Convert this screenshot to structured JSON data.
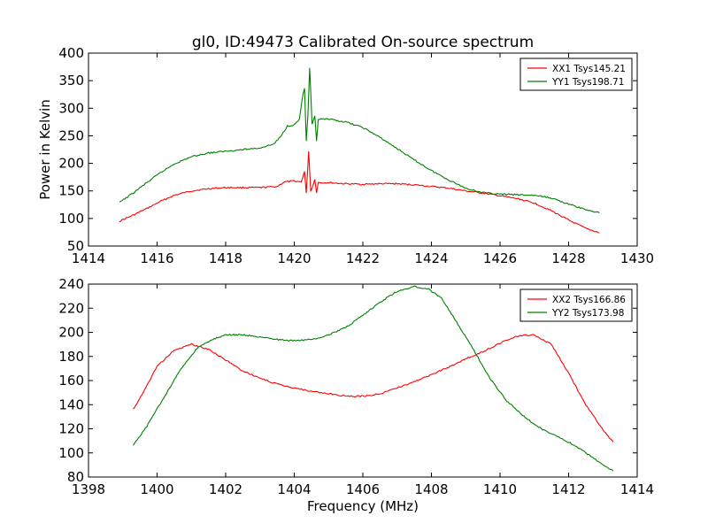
{
  "page_title": "gl0, ID:49473 Calibrated On-source spectrum",
  "colors": {
    "xx": "#ff0000",
    "yy": "#008000",
    "axis": "#000000",
    "background": "#ffffff"
  },
  "chart_data": [
    {
      "type": "line",
      "title": "gl0, ID:49473 Calibrated On-source spectrum",
      "xlabel": "",
      "ylabel": "Power in Kelvin",
      "xlim": [
        1414,
        1430
      ],
      "ylim": [
        50,
        400
      ],
      "xticks": [
        1414,
        1416,
        1418,
        1420,
        1422,
        1424,
        1426,
        1428,
        1430
      ],
      "yticks": [
        50,
        100,
        150,
        200,
        250,
        300,
        350,
        400
      ],
      "grid": false,
      "legend_position": "top-right",
      "series": [
        {
          "name": "XX1 Tsys145.21",
          "color": "#ff0000",
          "points": [
            [
              1414.9,
              95
            ],
            [
              1415.3,
              106
            ],
            [
              1415.7,
              118
            ],
            [
              1416.1,
              131
            ],
            [
              1416.5,
              142
            ],
            [
              1417.0,
              150
            ],
            [
              1417.5,
              154
            ],
            [
              1418.0,
              156
            ],
            [
              1418.5,
              156
            ],
            [
              1419.0,
              156
            ],
            [
              1419.5,
              158
            ],
            [
              1419.7,
              166
            ],
            [
              1420.0,
              168
            ],
            [
              1420.2,
              166
            ],
            [
              1420.3,
              185
            ],
            [
              1420.35,
              145
            ],
            [
              1420.42,
              222
            ],
            [
              1420.48,
              150
            ],
            [
              1420.55,
              160
            ],
            [
              1420.6,
              172
            ],
            [
              1420.65,
              147
            ],
            [
              1420.7,
              165
            ],
            [
              1421.0,
              165
            ],
            [
              1421.5,
              163
            ],
            [
              1422.0,
              162
            ],
            [
              1422.5,
              163
            ],
            [
              1423.0,
              163
            ],
            [
              1423.5,
              161
            ],
            [
              1424.0,
              158
            ],
            [
              1424.5,
              155
            ],
            [
              1425.0,
              150
            ],
            [
              1425.5,
              146
            ],
            [
              1426.0,
              141
            ],
            [
              1426.5,
              136
            ],
            [
              1427.0,
              128
            ],
            [
              1427.5,
              114
            ],
            [
              1428.0,
              97
            ],
            [
              1428.5,
              82
            ],
            [
              1428.9,
              74
            ]
          ]
        },
        {
          "name": "YY1 Tsys198.71",
          "color": "#008000",
          "points": [
            [
              1414.9,
              129
            ],
            [
              1415.3,
              146
            ],
            [
              1415.7,
              165
            ],
            [
              1416.1,
              183
            ],
            [
              1416.5,
              199
            ],
            [
              1417.0,
              212
            ],
            [
              1417.5,
              219
            ],
            [
              1418.0,
              222
            ],
            [
              1418.5,
              225
            ],
            [
              1419.0,
              228
            ],
            [
              1419.4,
              235
            ],
            [
              1419.6,
              248
            ],
            [
              1419.8,
              268
            ],
            [
              1420.0,
              270
            ],
            [
              1420.15,
              280
            ],
            [
              1420.25,
              325
            ],
            [
              1420.3,
              335
            ],
            [
              1420.35,
              240
            ],
            [
              1420.4,
              290
            ],
            [
              1420.45,
              372
            ],
            [
              1420.52,
              270
            ],
            [
              1420.6,
              285
            ],
            [
              1420.65,
              240
            ],
            [
              1420.7,
              280
            ],
            [
              1421.0,
              280
            ],
            [
              1421.5,
              275
            ],
            [
              1422.0,
              265
            ],
            [
              1422.5,
              247
            ],
            [
              1423.0,
              227
            ],
            [
              1423.5,
              206
            ],
            [
              1424.0,
              187
            ],
            [
              1424.5,
              170
            ],
            [
              1425.0,
              155
            ],
            [
              1425.5,
              147
            ],
            [
              1426.0,
              144
            ],
            [
              1426.5,
              143
            ],
            [
              1427.0,
              142
            ],
            [
              1427.5,
              137
            ],
            [
              1428.0,
              126
            ],
            [
              1428.5,
              116
            ],
            [
              1428.9,
              110
            ]
          ]
        }
      ]
    },
    {
      "type": "line",
      "title": "",
      "xlabel": "Frequency (MHz)",
      "ylabel": "",
      "xlim": [
        1398,
        1414
      ],
      "ylim": [
        80,
        240
      ],
      "xticks": [
        1398,
        1400,
        1402,
        1404,
        1406,
        1408,
        1410,
        1412,
        1414
      ],
      "yticks": [
        80,
        100,
        120,
        140,
        160,
        180,
        200,
        220,
        240
      ],
      "grid": false,
      "legend_position": "top-right",
      "series": [
        {
          "name": "XX2 Tsys166.86",
          "color": "#ff0000",
          "points": [
            [
              1399.3,
              136
            ],
            [
              1399.6,
              150
            ],
            [
              1400.0,
              172
            ],
            [
              1400.5,
              185
            ],
            [
              1401.0,
              190
            ],
            [
              1401.5,
              186
            ],
            [
              1402.0,
              177
            ],
            [
              1402.5,
              168
            ],
            [
              1403.0,
              162
            ],
            [
              1403.5,
              157
            ],
            [
              1404.0,
              154
            ],
            [
              1404.5,
              151
            ],
            [
              1405.0,
              149
            ],
            [
              1405.5,
              147
            ],
            [
              1406.0,
              147
            ],
            [
              1406.5,
              149
            ],
            [
              1407.0,
              154
            ],
            [
              1407.5,
              159
            ],
            [
              1408.0,
              165
            ],
            [
              1408.5,
              171
            ],
            [
              1409.0,
              178
            ],
            [
              1409.5,
              184
            ],
            [
              1410.0,
              191
            ],
            [
              1410.5,
              197
            ],
            [
              1411.0,
              198
            ],
            [
              1411.5,
              190
            ],
            [
              1412.0,
              166
            ],
            [
              1412.5,
              140
            ],
            [
              1413.0,
              119
            ],
            [
              1413.3,
              109
            ]
          ]
        },
        {
          "name": "YY2 Tsys173.98",
          "color": "#008000",
          "points": [
            [
              1399.3,
              106
            ],
            [
              1399.7,
              122
            ],
            [
              1400.2,
              146
            ],
            [
              1400.7,
              170
            ],
            [
              1401.2,
              188
            ],
            [
              1401.7,
              195
            ],
            [
              1402.0,
              198
            ],
            [
              1402.5,
              198
            ],
            [
              1403.0,
              196
            ],
            [
              1403.5,
              194
            ],
            [
              1404.0,
              193
            ],
            [
              1404.5,
              194
            ],
            [
              1405.0,
              198
            ],
            [
              1405.5,
              204
            ],
            [
              1406.0,
              214
            ],
            [
              1406.5,
              225
            ],
            [
              1407.0,
              234
            ],
            [
              1407.5,
              238
            ],
            [
              1407.9,
              236
            ],
            [
              1408.3,
              228
            ],
            [
              1408.7,
              210
            ],
            [
              1409.2,
              187
            ],
            [
              1409.7,
              162
            ],
            [
              1410.2,
              143
            ],
            [
              1410.7,
              130
            ],
            [
              1411.2,
              120
            ],
            [
              1411.7,
              113
            ],
            [
              1412.2,
              106
            ],
            [
              1412.7,
              96
            ],
            [
              1413.3,
              85
            ]
          ]
        }
      ]
    }
  ]
}
